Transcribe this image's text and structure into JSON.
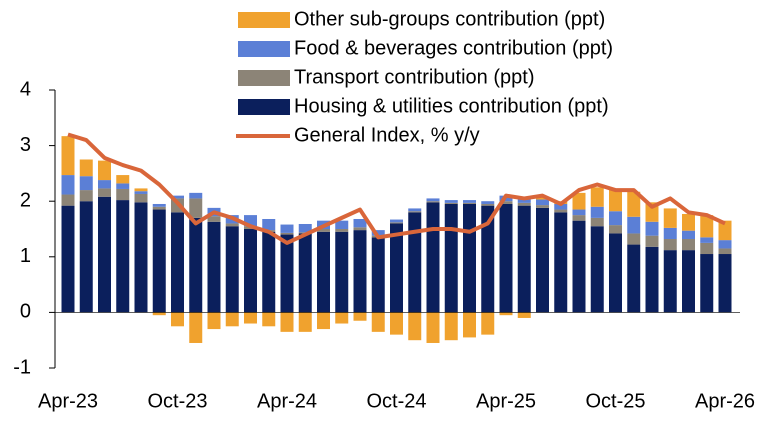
{
  "chart_data": {
    "type": "stacked_bar_line",
    "categories": [
      "Apr-23",
      null,
      null,
      null,
      null,
      null,
      "Oct-23",
      null,
      null,
      null,
      null,
      null,
      "Apr-24",
      null,
      null,
      null,
      null,
      null,
      "Oct-24",
      null,
      null,
      null,
      null,
      null,
      "Apr-25",
      null,
      null,
      null,
      null,
      null,
      "Oct-25",
      null,
      null,
      null,
      null,
      null,
      "Apr-26"
    ],
    "series": [
      {
        "name": "Housing & utilities contribution (ppt)",
        "color": "#0b1f5c",
        "values": [
          1.92,
          2.0,
          2.08,
          2.02,
          1.98,
          1.85,
          1.8,
          1.7,
          1.63,
          1.55,
          1.5,
          1.45,
          1.4,
          1.42,
          1.45,
          1.45,
          1.48,
          1.35,
          1.6,
          1.8,
          1.98,
          1.95,
          1.95,
          1.92,
          1.95,
          1.92,
          1.88,
          1.8,
          1.65,
          1.55,
          1.42,
          1.22,
          1.18,
          1.12,
          1.12,
          1.05,
          1.05
        ]
      },
      {
        "name": "Transport contribution (ppt)",
        "color": "#8c8477",
        "values": [
          0.2,
          0.2,
          0.15,
          0.2,
          0.15,
          0.05,
          0.25,
          0.35,
          0.1,
          0.05,
          0.05,
          0.03,
          0.03,
          0.02,
          0.05,
          0.05,
          0.05,
          0.03,
          0.02,
          0.02,
          0.02,
          0.02,
          0.02,
          0.03,
          0.05,
          0.05,
          0.05,
          0.05,
          0.1,
          0.15,
          0.15,
          0.2,
          0.2,
          0.2,
          0.2,
          0.2,
          0.1
        ]
      },
      {
        "name": "Food & beverages contribution (ppt)",
        "color": "#5b7fd6",
        "values": [
          0.35,
          0.25,
          0.15,
          0.1,
          0.05,
          0.05,
          0.05,
          0.1,
          0.15,
          0.15,
          0.2,
          0.2,
          0.15,
          0.15,
          0.15,
          0.15,
          0.15,
          0.1,
          0.05,
          0.05,
          0.05,
          0.05,
          0.05,
          0.05,
          0.1,
          0.1,
          0.1,
          0.1,
          0.1,
          0.2,
          0.25,
          0.3,
          0.25,
          0.2,
          0.15,
          0.1,
          0.15
        ]
      },
      {
        "name": "Other sub-groups contribution (ppt)",
        "color": "#f0a22e",
        "values": [
          0.7,
          0.3,
          0.35,
          0.15,
          0.05,
          -0.05,
          -0.25,
          -0.55,
          -0.3,
          -0.25,
          -0.2,
          -0.25,
          -0.35,
          -0.35,
          -0.3,
          -0.2,
          -0.15,
          -0.35,
          -0.4,
          -0.5,
          -0.55,
          -0.5,
          -0.45,
          -0.4,
          -0.05,
          -0.1,
          0.05,
          0.05,
          0.3,
          0.35,
          0.4,
          0.45,
          0.35,
          0.35,
          0.3,
          0.4,
          0.35
        ]
      },
      {
        "name": "General Index, % y/y",
        "color": "#d9663a",
        "kind": "line",
        "values": [
          3.2,
          3.1,
          2.78,
          2.65,
          2.55,
          2.3,
          1.97,
          1.6,
          1.8,
          1.7,
          1.55,
          1.45,
          1.25,
          1.4,
          1.55,
          1.7,
          1.85,
          1.35,
          1.4,
          1.45,
          1.5,
          1.5,
          1.45,
          1.6,
          2.1,
          2.05,
          2.1,
          1.95,
          2.2,
          2.3,
          2.2,
          2.2,
          1.9,
          2.05,
          1.8,
          1.75,
          1.6
        ]
      }
    ],
    "ylim": [
      -1,
      4
    ],
    "yticks": [
      -1,
      0,
      1,
      2,
      3,
      4
    ]
  }
}
